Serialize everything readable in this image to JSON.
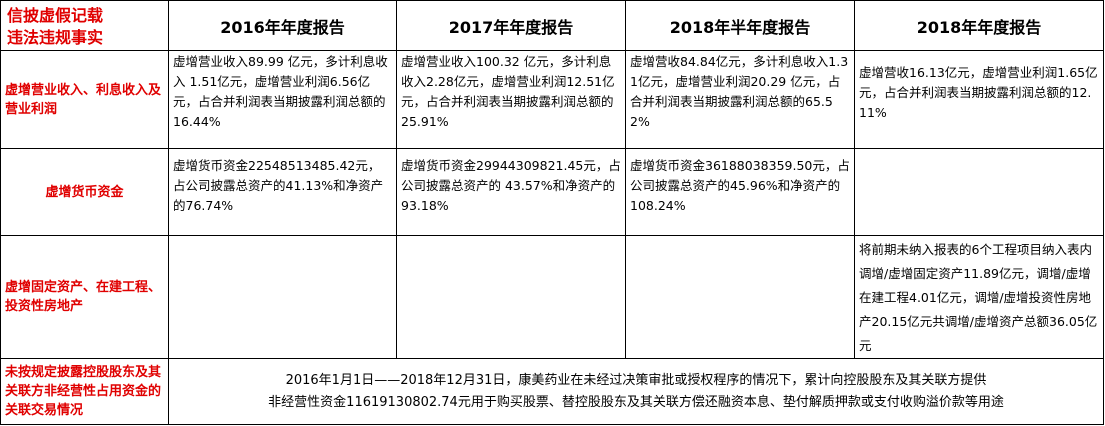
{
  "header": {
    "corner_line1": "信披虚假记载",
    "corner_line2": "违法违规事实",
    "years": [
      "2016年年度报告",
      "2017年年度报告",
      "2018年半年度报告",
      "2018年年度报告"
    ]
  },
  "rows": [
    {
      "label": "虚增营业收入、利息收入及营业利润",
      "cells": [
        "虚增营业收入89.99 亿元，多计利息收入 1.51亿元，虚增营业利润6.56亿元，占合并利润表当期披露利润总额的16.44%",
        "虚增营业收入100.32 亿元，多计利息收入2.28亿元，虚增营业利润12.51亿元，占合并利润表当期披露利润总额的25.91%",
        "虚增营收84.84亿元，多计利息收入1.31亿元，虚增营业利润20.29 亿元，占合并利润表当期披露利润总额的65.52%",
        "虚增营收16.13亿元，虚增营业利润1.65亿元，占合并利润表当期披露利润总额的12.11%"
      ]
    },
    {
      "label": "虚增货币资金",
      "cells": [
        "虚增货币资金22548513485.42元，占公司披露总资产的41.13%和净资产的76.74%",
        "虚增货币资金29944309821.45元，占公司披露总资产的 43.57%和净资产的 93.18%",
        "虚增货币资金36188038359.50元，占公司披露总资产的45.96%和净资产的 108.24%",
        ""
      ]
    },
    {
      "label": "虚增固定资产、在建工程、投资性房地产",
      "cells": [
        "",
        "",
        "",
        "将前期未纳入报表的6个工程项目纳入表内调增/虚增固定资产11.89亿元，调增/虚增在建工程4.01亿元，调增/虚增投资性房地产20.15亿元共调增/虚增资产总额36.05亿元"
      ]
    },
    {
      "label": "未按规定披露控股股东及其关联方非经营性占用资金的关联交易情况",
      "merged_line1": "2016年1月1日——2018年12月31日，康美药业在未经过决策审批或授权程序的情况下，累计向控股股东及其关联方提供",
      "merged_line2": "非经营性资金11619130802.74元用于购买股票、替控股股东及其关联方偿还融资本息、垫付解质押款或支付收购溢价款等用途"
    }
  ]
}
